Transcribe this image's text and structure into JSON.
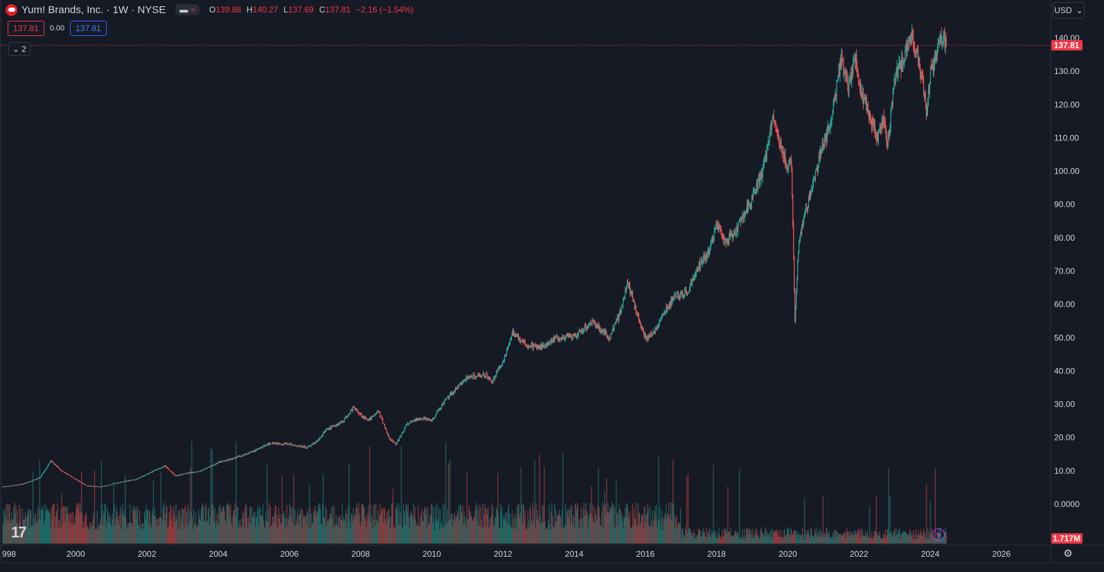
{
  "header": {
    "title": "Yum! Brands, Inc. · 1W · NYSE",
    "ohlc": [
      {
        "key": "O",
        "value": "139.88"
      },
      {
        "key": "H",
        "value": "140.27"
      },
      {
        "key": "L",
        "value": "137.69"
      },
      {
        "key": "C",
        "value": "137.81"
      }
    ],
    "change": "−2.16 (−1.54%)",
    "bid": "137.81",
    "spread": "0.00",
    "ask": "137.81",
    "collapse_count": "2",
    "currency": "USD"
  },
  "colors": {
    "background": "#161a25",
    "up": "#26a69a",
    "down": "#ef5350",
    "price_label": "#f23645",
    "ask_blue": "#2962ff"
  },
  "chart_data": {
    "type": "candlestick",
    "interval": "weekly",
    "y_axis_ticks": [
      "140.00",
      "130.00",
      "120.00",
      "110.00",
      "100.00",
      "90.00",
      "80.00",
      "70.00",
      "60.00",
      "50.00",
      "40.00",
      "30.00",
      "20.00",
      "10.00",
      "0.0000"
    ],
    "x_axis_ticks": [
      "998",
      "2000",
      "2002",
      "2004",
      "2006",
      "2008",
      "2010",
      "2012",
      "2014",
      "2016",
      "2018",
      "2020",
      "2022",
      "2024",
      "2026"
    ],
    "ylim": [
      -5,
      145
    ],
    "last_price_label": "137.81",
    "last_volume_label": "1.717M",
    "price_path": [
      [
        1997.95,
        5.2
      ],
      [
        1998.5,
        6.0
      ],
      [
        1999.0,
        8.0
      ],
      [
        1999.3,
        13.0
      ],
      [
        1999.6,
        10.0
      ],
      [
        2000.0,
        7.5
      ],
      [
        2000.3,
        5.5
      ],
      [
        2000.7,
        5.2
      ],
      [
        2001.2,
        6.5
      ],
      [
        2001.7,
        7.5
      ],
      [
        2002.0,
        9.0
      ],
      [
        2002.5,
        11.5
      ],
      [
        2002.8,
        8.5
      ],
      [
        2003.0,
        9.0
      ],
      [
        2003.5,
        10.0
      ],
      [
        2004.0,
        12.5
      ],
      [
        2004.5,
        14.0
      ],
      [
        2005.0,
        16.0
      ],
      [
        2005.5,
        18.5
      ],
      [
        2006.0,
        18.0
      ],
      [
        2006.5,
        17.0
      ],
      [
        2006.8,
        19.0
      ],
      [
        2007.0,
        22.0
      ],
      [
        2007.5,
        25.0
      ],
      [
        2007.8,
        29.0
      ],
      [
        2008.2,
        25.0
      ],
      [
        2008.5,
        28.0
      ],
      [
        2008.8,
        20.0
      ],
      [
        2009.0,
        18.0
      ],
      [
        2009.3,
        24.0
      ],
      [
        2009.7,
        26.0
      ],
      [
        2010.0,
        25.0
      ],
      [
        2010.3,
        30.0
      ],
      [
        2010.7,
        35.0
      ],
      [
        2011.0,
        38.0
      ],
      [
        2011.5,
        39.0
      ],
      [
        2011.7,
        37.0
      ],
      [
        2012.0,
        43.0
      ],
      [
        2012.3,
        52.0
      ],
      [
        2012.6,
        48.0
      ],
      [
        2013.0,
        47.0
      ],
      [
        2013.5,
        50.0
      ],
      [
        2014.0,
        50.0
      ],
      [
        2014.5,
        55.0
      ],
      [
        2014.8,
        52.0
      ],
      [
        2015.0,
        50.0
      ],
      [
        2015.3,
        58.0
      ],
      [
        2015.5,
        67.0
      ],
      [
        2015.8,
        56.0
      ],
      [
        2016.0,
        50.0
      ],
      [
        2016.2,
        51.0
      ],
      [
        2016.5,
        57.0
      ],
      [
        2016.8,
        62.0
      ],
      [
        2017.2,
        64.0
      ],
      [
        2017.5,
        72.0
      ],
      [
        2017.8,
        76.0
      ],
      [
        2018.0,
        84.0
      ],
      [
        2018.2,
        79.0
      ],
      [
        2018.5,
        81.0
      ],
      [
        2018.8,
        88.0
      ],
      [
        2019.0,
        92.0
      ],
      [
        2019.3,
        100.0
      ],
      [
        2019.6,
        117.0
      ],
      [
        2019.8,
        108.0
      ],
      [
        2020.0,
        100.0
      ],
      [
        2020.1,
        104.0
      ],
      [
        2020.2,
        55.0
      ],
      [
        2020.3,
        78.0
      ],
      [
        2020.5,
        88.0
      ],
      [
        2020.7,
        95.0
      ],
      [
        2020.9,
        105.0
      ],
      [
        2021.2,
        114.0
      ],
      [
        2021.5,
        134.0
      ],
      [
        2021.7,
        125.0
      ],
      [
        2021.9,
        135.0
      ],
      [
        2022.0,
        126.0
      ],
      [
        2022.3,
        117.0
      ],
      [
        2022.5,
        110.0
      ],
      [
        2022.7,
        117.0
      ],
      [
        2022.8,
        107.0
      ],
      [
        2023.0,
        128.0
      ],
      [
        2023.3,
        135.0
      ],
      [
        2023.5,
        141.0
      ],
      [
        2023.7,
        132.0
      ],
      [
        2023.8,
        126.0
      ],
      [
        2023.9,
        118.0
      ],
      [
        2024.0,
        129.0
      ],
      [
        2024.2,
        137.0
      ],
      [
        2024.35,
        141.0
      ],
      [
        2024.45,
        137.81
      ]
    ]
  }
}
